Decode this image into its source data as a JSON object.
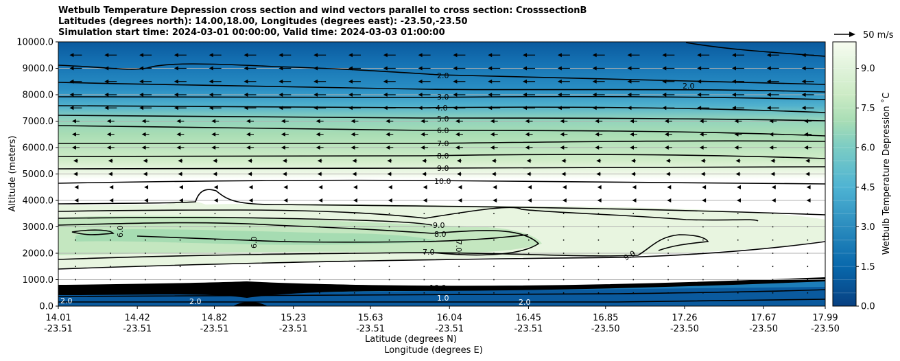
{
  "chart_data": {
    "type": "contour",
    "title_lines": [
      "Wetbulb Temperature Depression cross section and wind vectors parallel to cross section: CrosssectionB",
      "Latitudes (degrees north): 14.00,18.00, Longitudes (degrees east): -23.50,-23.50",
      "Simulation start time: 2024-03-01 00:00:00, Valid time: 2024-03-03 01:00:00"
    ],
    "ylabel": "Altitude (meters)",
    "xlabel_lat": "Latitude (degrees N)",
    "xlabel_lon": "Longitude (degrees E)",
    "ylim": [
      0,
      10000
    ],
    "yticks": [
      "0.0",
      "1000.0",
      "2000.0",
      "3000.0",
      "4000.0",
      "5000.0",
      "6000.0",
      "7000.0",
      "8000.0",
      "9000.0",
      "10000.0"
    ],
    "xticks_lat": [
      "14.01",
      "14.42",
      "14.82",
      "15.23",
      "15.63",
      "16.04",
      "16.45",
      "16.85",
      "17.26",
      "17.67",
      "17.99"
    ],
    "xticks_lon": [
      "-23.51",
      "-23.51",
      "-23.51",
      "-23.51",
      "-23.51",
      "-23.51",
      "-23.51",
      "-23.50",
      "-23.50",
      "-23.50",
      "-23.50"
    ],
    "colorbar_label": "Wetbulb Temperature Depression ˚C",
    "colorbar_ticks": [
      "0.0",
      "1.5",
      "3.0",
      "4.5",
      "6.0",
      "7.5",
      "9.0"
    ],
    "colorbar_range": [
      0,
      10
    ],
    "quiver_key_label": "50 m/s",
    "grid": "horizontal",
    "contour_labels_upper": [
      "2.0",
      "3.0",
      "4.0",
      "5.0",
      "6.0",
      "7.0",
      "8.0",
      "9.0",
      "10.0"
    ],
    "contour_labels_lower": [
      "9.0",
      "8.0",
      "7.0",
      "6.0",
      "7.0",
      "9.0",
      "6.0",
      "9.0",
      "10.0",
      "1.0",
      "2.0"
    ]
  }
}
